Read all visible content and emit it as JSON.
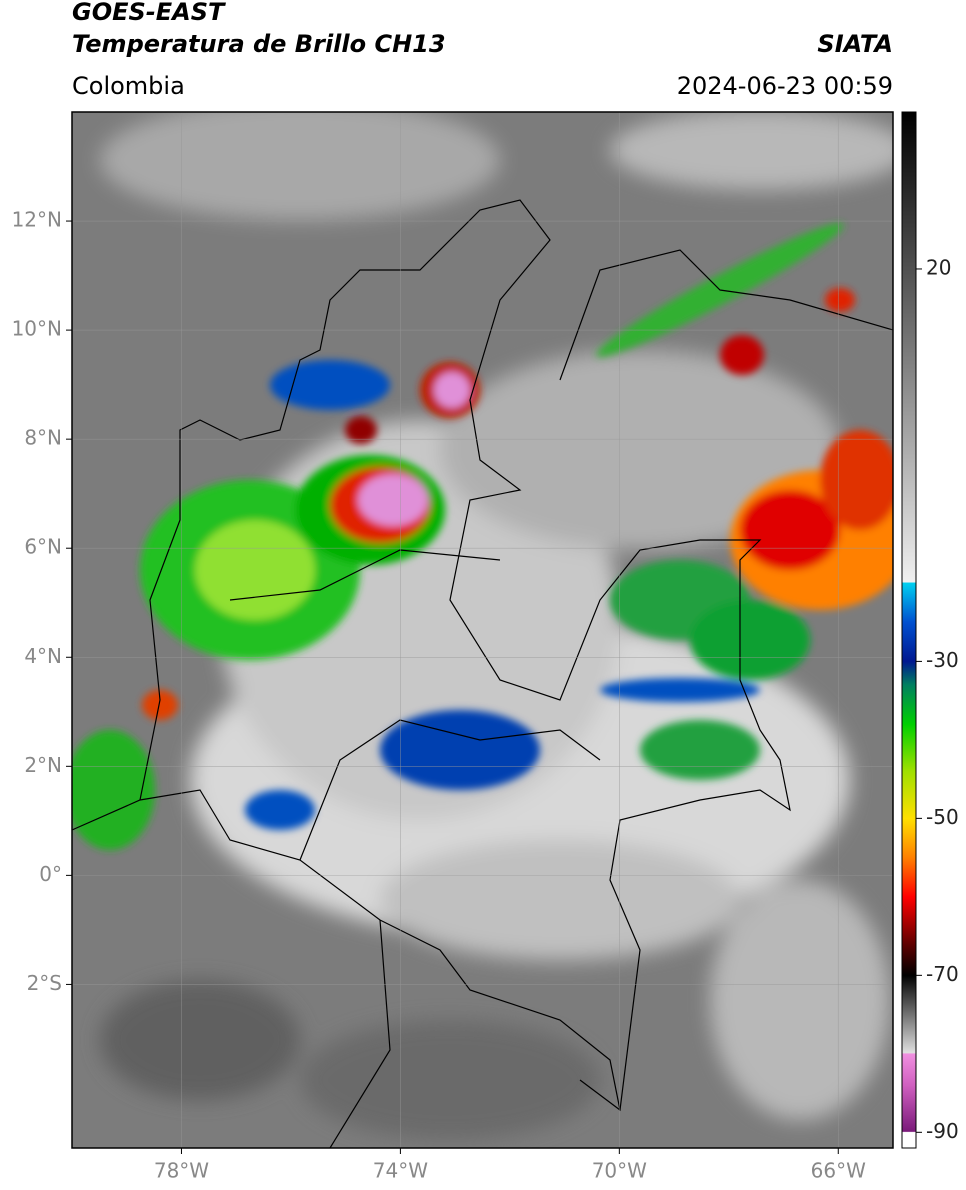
{
  "chart_data": {
    "type": "map",
    "title": "GOES-EAST",
    "subtitle": "Temperatura de Brillo CH13",
    "source": "SIATA",
    "region": "Colombia",
    "date": "2024-06-23 00:59",
    "xlim": [
      -80,
      -65
    ],
    "ylim": [
      -5,
      14
    ],
    "xticks": [
      {
        "value": -78,
        "label": "78°W"
      },
      {
        "value": -74,
        "label": "74°W"
      },
      {
        "value": -70,
        "label": "70°W"
      },
      {
        "value": -66,
        "label": "66°W"
      }
    ],
    "yticks": [
      {
        "value": -2,
        "label": "2°S"
      },
      {
        "value": 0,
        "label": "0°"
      },
      {
        "value": 2,
        "label": "2°N"
      },
      {
        "value": 4,
        "label": "4°N"
      },
      {
        "value": 6,
        "label": "6°N"
      },
      {
        "value": 8,
        "label": "8°N"
      },
      {
        "value": 10,
        "label": "10°N"
      },
      {
        "value": 12,
        "label": "12°N"
      }
    ],
    "grid": true,
    "colorbar": {
      "lim": [
        -92,
        40
      ],
      "ticks": [
        20,
        -30,
        -50,
        -70,
        -90
      ],
      "colormap": [
        {
          "value": -92,
          "color": "#ffffff"
        },
        {
          "value": -90,
          "color": "#ffffff"
        },
        {
          "value": -89.9,
          "color": "#7a1a7a"
        },
        {
          "value": -84,
          "color": "#d060c0"
        },
        {
          "value": -80,
          "color": "#f090e0"
        },
        {
          "value": -79.9,
          "color": "#e0e0e0"
        },
        {
          "value": -72,
          "color": "#303030"
        },
        {
          "value": -70,
          "color": "#000000"
        },
        {
          "value": -66,
          "color": "#600000"
        },
        {
          "value": -60,
          "color": "#ff0000"
        },
        {
          "value": -55,
          "color": "#ff8000"
        },
        {
          "value": -50,
          "color": "#ffe000"
        },
        {
          "value": -44,
          "color": "#a0e000"
        },
        {
          "value": -38,
          "color": "#00d000"
        },
        {
          "value": -33,
          "color": "#008060"
        },
        {
          "value": -30,
          "color": "#001890"
        },
        {
          "value": -25,
          "color": "#0050d0"
        },
        {
          "value": -20,
          "color": "#00d0f0"
        },
        {
          "value": -19.9,
          "color": "#f0f0f0"
        },
        {
          "value": 40,
          "color": "#000000"
        }
      ]
    }
  }
}
